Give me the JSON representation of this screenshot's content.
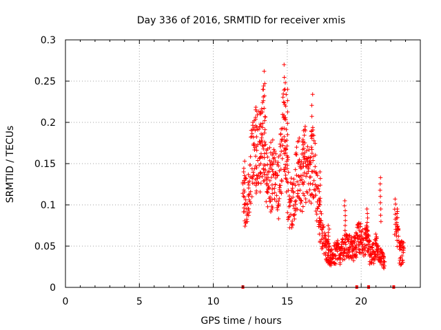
{
  "chart_data": {
    "type": "scatter",
    "title": "Day 336 of 2016, SRMTID for receiver xmis",
    "xlabel": "GPS time / hours",
    "ylabel": "SRMTID / TECUs",
    "xlim": [
      0,
      24
    ],
    "ylim": [
      0,
      0.3
    ],
    "xticks": [
      0,
      5,
      10,
      15,
      20
    ],
    "yticks": [
      0,
      0.05,
      0.1,
      0.15,
      0.2,
      0.25,
      0.3
    ],
    "xtick_labels": [
      "0",
      "5",
      "10",
      "15",
      "20"
    ],
    "ytick_labels": [
      "0",
      "0.05",
      "0.1",
      "0.15",
      "0.2",
      "0.25",
      "0.3"
    ],
    "grid": true,
    "marker": "+",
    "series": [
      {
        "name": "SRMTID",
        "color": "#ff0000",
        "trend": [
          [
            12.0,
            0.12
          ],
          [
            12.2,
            0.1
          ],
          [
            12.4,
            0.11
          ],
          [
            12.6,
            0.16
          ],
          [
            12.8,
            0.17
          ],
          [
            13.0,
            0.16
          ],
          [
            13.2,
            0.17
          ],
          [
            13.4,
            0.19
          ],
          [
            13.6,
            0.13
          ],
          [
            13.8,
            0.13
          ],
          [
            14.0,
            0.14
          ],
          [
            14.2,
            0.13
          ],
          [
            14.4,
            0.12
          ],
          [
            14.6,
            0.15
          ],
          [
            14.8,
            0.2
          ],
          [
            15.0,
            0.13
          ],
          [
            15.2,
            0.1
          ],
          [
            15.4,
            0.11
          ],
          [
            15.6,
            0.13
          ],
          [
            15.8,
            0.14
          ],
          [
            16.0,
            0.13
          ],
          [
            16.2,
            0.15
          ],
          [
            16.4,
            0.14
          ],
          [
            16.6,
            0.15
          ],
          [
            16.8,
            0.15
          ],
          [
            17.0,
            0.11
          ],
          [
            17.2,
            0.08
          ],
          [
            17.4,
            0.06
          ],
          [
            17.6,
            0.05
          ],
          [
            17.8,
            0.04
          ],
          [
            18.0,
            0.035
          ],
          [
            18.2,
            0.04
          ],
          [
            18.4,
            0.045
          ],
          [
            18.6,
            0.04
          ],
          [
            18.8,
            0.05
          ],
          [
            19.0,
            0.05
          ],
          [
            19.2,
            0.05
          ],
          [
            19.4,
            0.045
          ],
          [
            19.6,
            0.05
          ],
          [
            19.8,
            0.06
          ],
          [
            20.0,
            0.06
          ],
          [
            20.2,
            0.055
          ],
          [
            20.4,
            0.06
          ],
          [
            20.6,
            0.04
          ],
          [
            20.8,
            0.04
          ],
          [
            21.0,
            0.05
          ],
          [
            21.2,
            0.045
          ],
          [
            21.4,
            0.035
          ],
          [
            21.6,
            0.03
          ]
        ],
        "segment2": [
          [
            22.4,
            0.085
          ],
          [
            22.5,
            0.06
          ],
          [
            22.6,
            0.045
          ],
          [
            22.7,
            0.04
          ],
          [
            22.8,
            0.045
          ],
          [
            22.9,
            0.04
          ]
        ],
        "peaks": [
          [
            12.1,
            0.153
          ],
          [
            12.9,
            0.206
          ],
          [
            13.2,
            0.21
          ],
          [
            13.35,
            0.24
          ],
          [
            13.45,
            0.262
          ],
          [
            14.8,
            0.27
          ],
          [
            14.9,
            0.248
          ],
          [
            15.0,
            0.24
          ],
          [
            16.7,
            0.234
          ],
          [
            16.1,
            0.19
          ],
          [
            17.2,
            0.14
          ],
          [
            17.8,
            0.075
          ],
          [
            18.9,
            0.105
          ],
          [
            20.4,
            0.095
          ],
          [
            21.3,
            0.133
          ],
          [
            22.3,
            0.107
          ],
          [
            22.4,
            0.095
          ]
        ]
      }
    ],
    "x_axis_markers": [
      12.0,
      19.7,
      20.5,
      22.2
    ]
  }
}
